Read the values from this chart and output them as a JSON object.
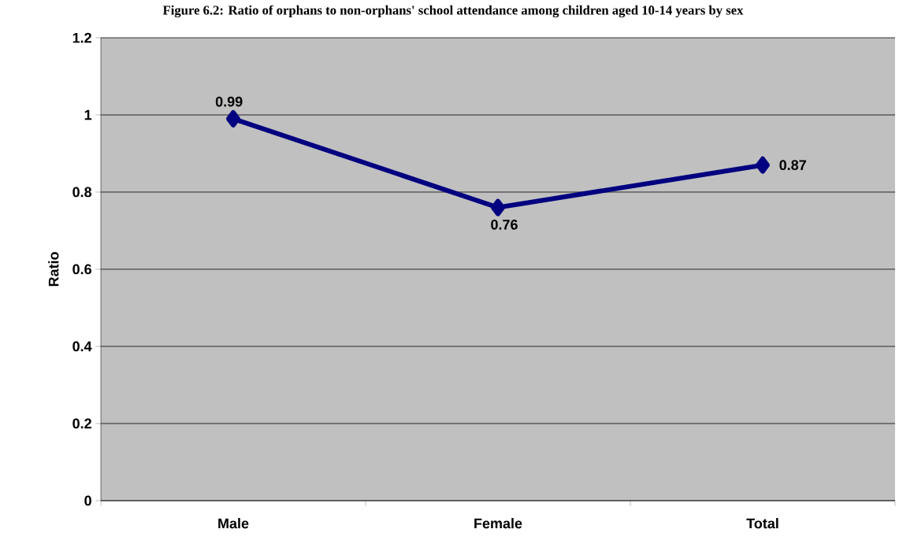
{
  "chart_data": {
    "type": "line",
    "title": "Figure 6.2: Ratio of orphans to non-orphans' school attendance among children aged 10-14 years by sex",
    "ylabel": "Ratio",
    "categories": [
      "Male",
      "Female",
      "Total"
    ],
    "series": [
      {
        "color": "#000080",
        "values": [
          0.99,
          0.76,
          0.87
        ]
      }
    ],
    "ylim": [
      0,
      1.2
    ],
    "yticks": [
      0,
      0.2,
      0.4,
      0.6,
      0.8,
      1,
      1.2
    ],
    "grid": "y",
    "marker": "diamond",
    "line_style": "solid",
    "data_labels": true,
    "legend": false
  }
}
